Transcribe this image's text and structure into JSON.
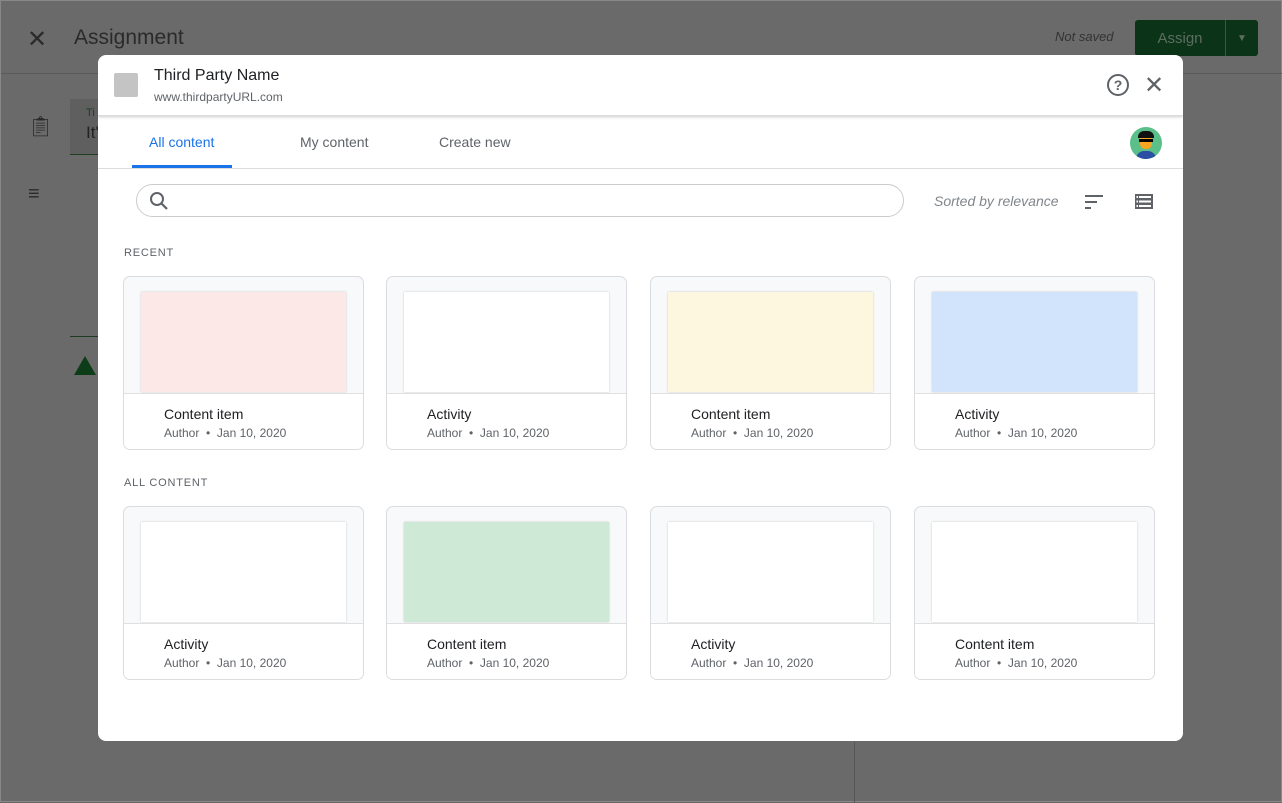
{
  "background": {
    "close_icon": "close-icon",
    "title": "Assignment",
    "status": "Not saved",
    "assign_label": "Assign",
    "title_field_label": "Ti",
    "title_field_value": "It'"
  },
  "modal": {
    "name": "Third Party Name",
    "url": "www.thirdpartyURL.com",
    "tabs": [
      {
        "label": "All content",
        "active": true
      },
      {
        "label": "My content"
      },
      {
        "label": "Create new"
      }
    ],
    "search": {
      "placeholder": ""
    },
    "sort_label": "Sorted by relevance",
    "sections": [
      {
        "title": "RECENT",
        "items": [
          {
            "title": "Content item",
            "author": "Author",
            "date": "Jan 10, 2020",
            "color": "#fce8e6"
          },
          {
            "title": "Activity",
            "author": "Author",
            "date": "Jan 10, 2020",
            "color": "#ffffff"
          },
          {
            "title": "Content item",
            "author": "Author",
            "date": "Jan 10, 2020",
            "color": "#fef7e0"
          },
          {
            "title": "Activity",
            "author": "Author",
            "date": "Jan 10, 2020",
            "color": "#d2e3fc"
          }
        ]
      },
      {
        "title": "ALL CONTENT",
        "items": [
          {
            "title": "Activity",
            "author": "Author",
            "date": "Jan 10, 2020",
            "color": "#ffffff"
          },
          {
            "title": "Content item",
            "author": "Author",
            "date": "Jan 10, 2020",
            "color": "#ceead6"
          },
          {
            "title": "Activity",
            "author": "Author",
            "date": "Jan 10, 2020",
            "color": "#ffffff"
          },
          {
            "title": "Content item",
            "author": "Author",
            "date": "Jan 10, 2020",
            "color": "#ffffff"
          }
        ]
      }
    ]
  },
  "colors": {
    "accent": "#1a73e8",
    "assign": "#0b3318"
  }
}
